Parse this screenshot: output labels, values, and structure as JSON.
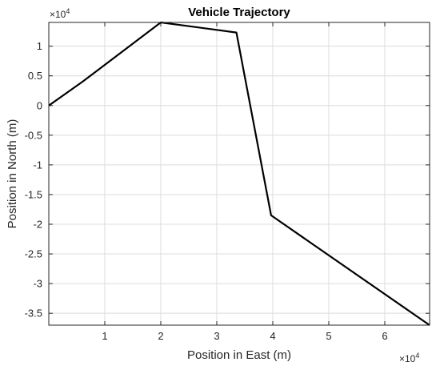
{
  "chart_data": {
    "type": "line",
    "title": "Vehicle Trajectory",
    "xlabel": "Position in East (m)",
    "ylabel": "Position in North (m)",
    "x_multiplier_base": "×10",
    "x_multiplier_exp": "4",
    "y_multiplier_base": "×10",
    "y_multiplier_exp": "4",
    "xlim": [
      0,
      68000
    ],
    "ylim": [
      -37000,
      14000
    ],
    "x_ticks": [
      10000,
      20000,
      30000,
      40000,
      50000,
      60000
    ],
    "x_tick_labels": [
      "1",
      "2",
      "3",
      "4",
      "5",
      "6"
    ],
    "y_ticks": [
      10000,
      5000,
      0,
      -5000,
      -10000,
      -15000,
      -20000,
      -25000,
      -30000,
      -35000
    ],
    "y_tick_labels": [
      "1",
      "0.5",
      "0",
      "-0.5",
      "-1",
      "-1.5",
      "-2",
      "-2.5",
      "-3",
      "-3.5"
    ],
    "grid": true,
    "line_color": "#000000",
    "series": [
      {
        "x": [
          0,
          6000,
          20000,
          33500,
          39700,
          68000
        ],
        "y": [
          0,
          4000,
          14000,
          12300,
          -18500,
          -37000
        ]
      }
    ]
  }
}
